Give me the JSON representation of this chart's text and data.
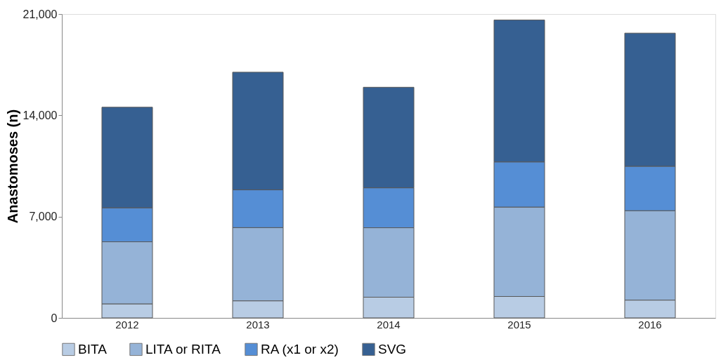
{
  "chart_data": {
    "type": "bar",
    "stacked": true,
    "ylabel": "Anastomoses (n)",
    "categories": [
      "2012",
      "2013",
      "2014",
      "2015",
      "2016"
    ],
    "series": [
      {
        "name": "BITA",
        "color": "#b8cce4",
        "values": [
          970,
          1180,
          1430,
          1480,
          1230
        ]
      },
      {
        "name": "LITA or RITA",
        "color": "#95b3d7",
        "values": [
          4290,
          5060,
          4800,
          6180,
          6180
        ]
      },
      {
        "name": "RA (x1 or x2)",
        "color": "#558ed5",
        "values": [
          2350,
          2610,
          2760,
          3120,
          3070
        ]
      },
      {
        "name": "SVG",
        "color": "#366092",
        "values": [
          6950,
          8130,
          6950,
          9810,
          9200
        ]
      }
    ],
    "ylim": [
      0,
      21000
    ],
    "yticks": [
      0,
      {
        "value": 7000,
        "label": "7,000"
      },
      {
        "value": 14000,
        "label": "14,000"
      },
      {
        "value": 21000,
        "label": "21,000"
      }
    ],
    "grid": false,
    "legend": "bottom"
  }
}
